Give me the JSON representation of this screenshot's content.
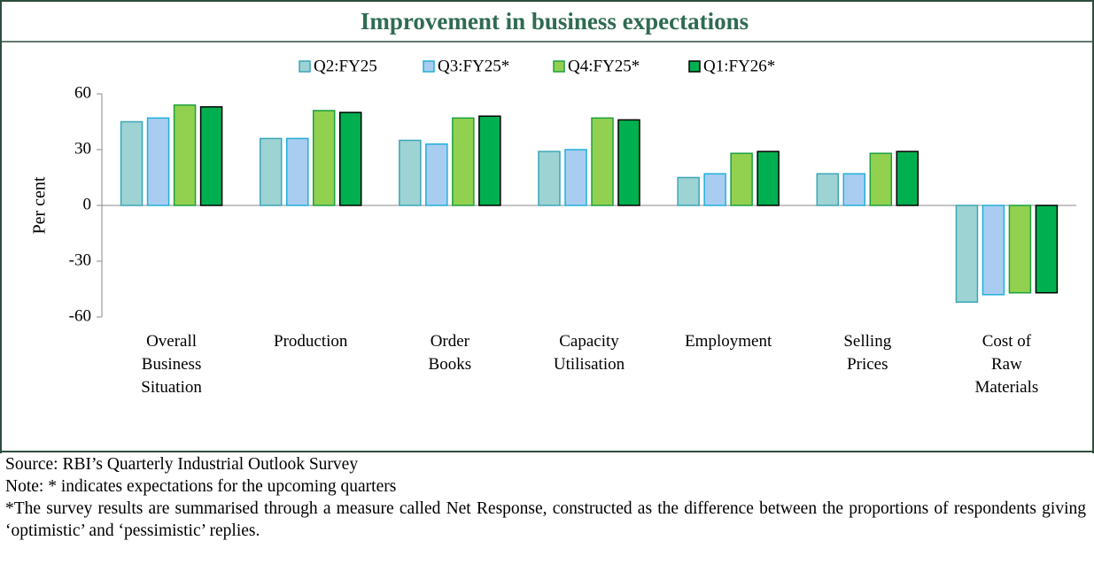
{
  "chart_data": {
    "type": "bar",
    "title": "Improvement in business expectations",
    "y_label": "Per cent",
    "categories": [
      "Overall\nBusiness\nSituation",
      "Production",
      "Order\nBooks",
      "Capacity\nUtilisation",
      "Employment",
      "Selling\nPrices",
      "Cost of\nRaw\nMaterials"
    ],
    "series": [
      {
        "name": "Q2:FY25",
        "color": "#9ed3d3",
        "edge": "#3aa6b8",
        "values": [
          45,
          36,
          35,
          29,
          15,
          17,
          -52
        ]
      },
      {
        "name": "Q3:FY25*",
        "color": "#a9cdf0",
        "edge": "#1fb0d8",
        "values": [
          47,
          36,
          33,
          30,
          17,
          17,
          -48
        ]
      },
      {
        "name": "Q4:FY25*",
        "color": "#92d050",
        "edge": "#1aa040",
        "values": [
          54,
          51,
          47,
          47,
          28,
          28,
          -47
        ]
      },
      {
        "name": "Q1:FY26*",
        "color": "#00b050",
        "edge": "#000000",
        "values": [
          53,
          50,
          48,
          46,
          29,
          29,
          -47
        ]
      }
    ],
    "ylim": [
      -60,
      60
    ],
    "yticks": [
      -60,
      -30,
      0,
      30,
      60
    ],
    "grid": false,
    "legend": "top",
    "notes": [
      "Source: RBI’s Quarterly Industrial Outlook Survey",
      "Note: * indicates expectations for the upcoming quarters",
      "*The survey results are summarised through a measure called Net Response, constructed as the difference between the proportions of respondents giving ‘optimistic’ and ‘pessimistic’ replies."
    ]
  }
}
